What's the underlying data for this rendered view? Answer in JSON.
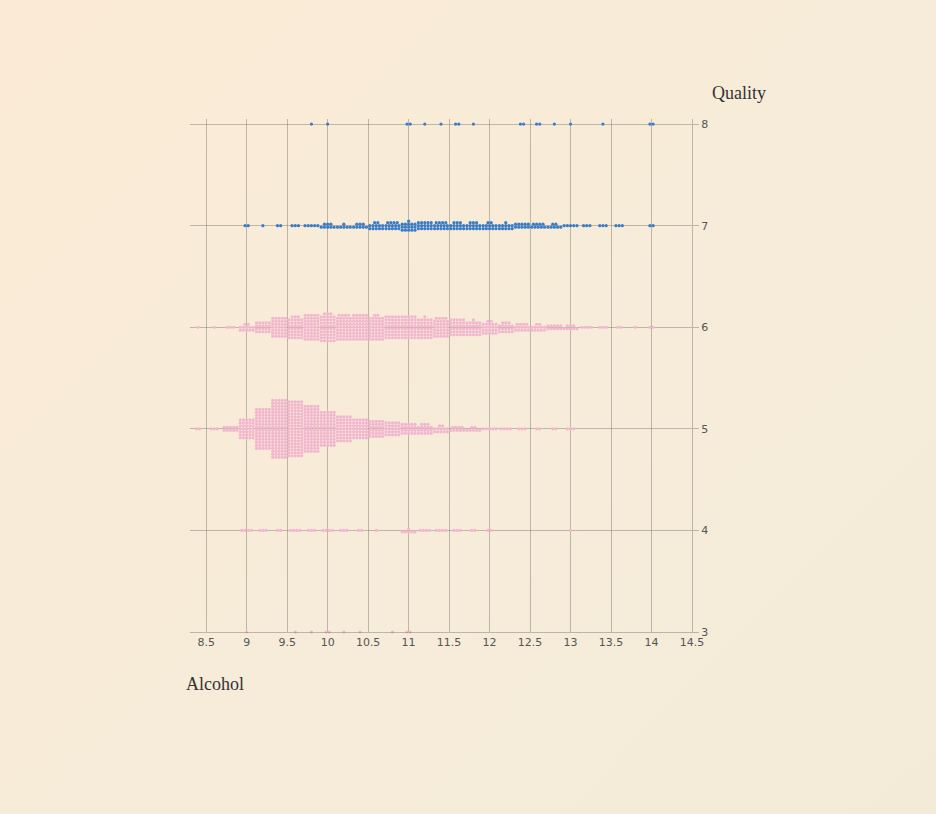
{
  "chart_data": {
    "type": "beeswarm",
    "x_label": "Alcohol",
    "y_label": "Quality",
    "xlim": [
      8.3,
      14.5
    ],
    "xticks": [
      8.5,
      9,
      9.5,
      10,
      10.5,
      11,
      11.5,
      12,
      12.5,
      13,
      13.5,
      14,
      14.5
    ],
    "ylim": [
      3,
      8.05
    ],
    "yticks": [
      3,
      4,
      5,
      6,
      7,
      8
    ],
    "grid": true,
    "marker": "circle",
    "series": [
      {
        "y": 8,
        "color": "#3a7cc6",
        "x": [
          9.8,
          10.0,
          11.0,
          11.2,
          11.4,
          11.6,
          11.8,
          12.4,
          12.6,
          12.8,
          13.0,
          13.4,
          14.0
        ],
        "counts": [
          1,
          1,
          2,
          1,
          1,
          2,
          1,
          2,
          2,
          1,
          1,
          1,
          2
        ]
      },
      {
        "y": 7,
        "color": "#3a7cc6",
        "x": [
          9.0,
          9.2,
          9.4,
          9.6,
          9.8,
          10.0,
          10.2,
          10.4,
          10.6,
          10.8,
          11.0,
          11.2,
          11.4,
          11.6,
          11.8,
          12.0,
          12.2,
          12.4,
          12.6,
          12.8,
          13.0,
          13.2,
          13.4,
          13.6,
          14.0
        ],
        "counts": [
          2,
          1,
          2,
          3,
          5,
          8,
          6,
          8,
          12,
          14,
          16,
          15,
          14,
          13,
          13,
          12,
          11,
          10,
          9,
          7,
          5,
          3,
          3,
          3,
          2
        ]
      },
      {
        "y": 6,
        "color": "#f2b6cf",
        "x": [
          8.4,
          8.6,
          8.8,
          9.0,
          9.2,
          9.4,
          9.6,
          9.8,
          10.0,
          10.2,
          10.4,
          10.6,
          10.8,
          11.0,
          11.2,
          11.4,
          11.6,
          11.8,
          12.0,
          12.2,
          12.4,
          12.6,
          12.8,
          13.0,
          13.2,
          13.4,
          13.6,
          13.8,
          14.0
        ],
        "counts": [
          1,
          1,
          3,
          12,
          20,
          35,
          38,
          45,
          48,
          44,
          45,
          42,
          40,
          40,
          36,
          34,
          30,
          26,
          22,
          18,
          14,
          12,
          10,
          8,
          4,
          3,
          2,
          1,
          2
        ]
      },
      {
        "y": 5,
        "color": "#f2b6cf",
        "x": [
          8.4,
          8.6,
          8.8,
          9.0,
          9.2,
          9.4,
          9.6,
          9.8,
          10.0,
          10.2,
          10.4,
          10.6,
          10.8,
          11.0,
          11.2,
          11.4,
          11.6,
          11.8,
          12.0,
          12.2,
          12.4,
          12.6,
          12.8,
          13.0
        ],
        "counts": [
          2,
          3,
          10,
          35,
          70,
          100,
          95,
          80,
          60,
          45,
          35,
          30,
          25,
          20,
          18,
          12,
          9,
          7,
          5,
          4,
          3,
          2,
          2,
          3
        ]
      },
      {
        "y": 4,
        "color": "#f2b6cf",
        "x": [
          9.0,
          9.2,
          9.4,
          9.6,
          9.8,
          10.0,
          10.2,
          10.4,
          10.6,
          11.0,
          11.2,
          11.4,
          11.6,
          11.8,
          12.0,
          13.0
        ],
        "counts": [
          4,
          3,
          2,
          4,
          3,
          4,
          3,
          2,
          1,
          6,
          4,
          4,
          3,
          2,
          2,
          1
        ]
      },
      {
        "y": 3,
        "color": "#f2b6cf",
        "x": [
          9.0,
          9.6,
          9.8,
          10.0,
          10.2,
          10.4,
          10.8,
          11.0
        ],
        "counts": [
          1,
          1,
          1,
          2,
          1,
          1,
          1,
          2
        ]
      }
    ]
  }
}
